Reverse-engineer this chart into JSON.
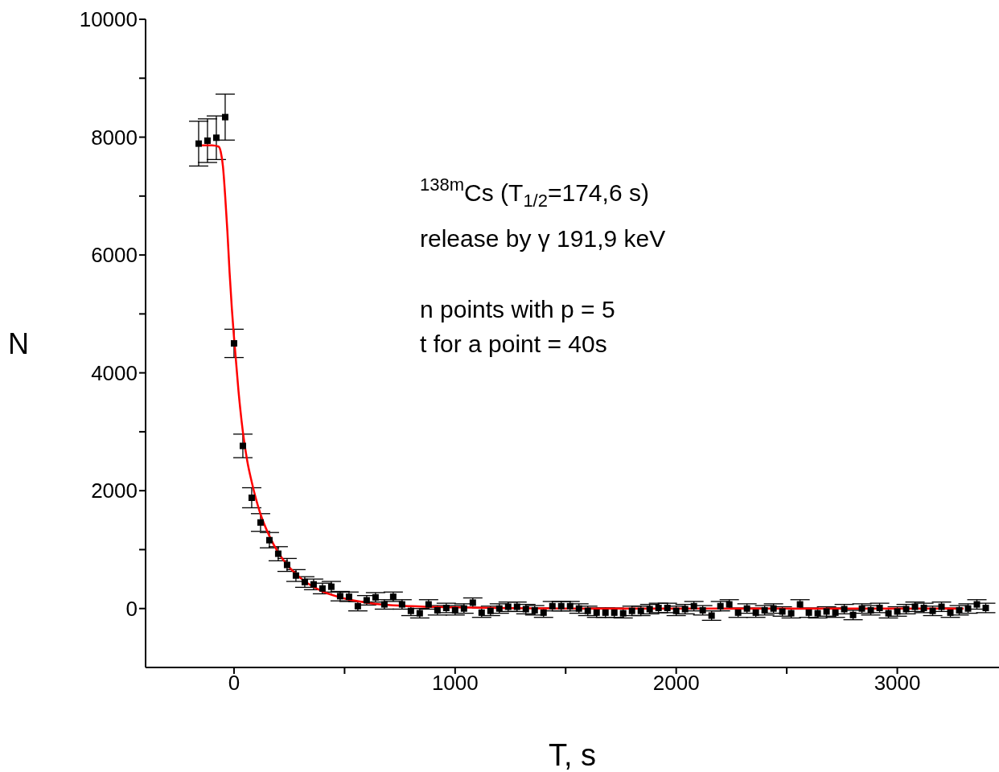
{
  "chart_data": {
    "type": "scatter",
    "xlabel": "T, s",
    "ylabel": "N",
    "xlim": [
      -400,
      3460
    ],
    "ylim": [
      -1000,
      10000
    ],
    "xticks": [
      0,
      {
        "value": 500,
        "label": null
      },
      1000,
      {
        "value": 1500,
        "label": null
      },
      2000,
      {
        "value": 2500,
        "label": null
      },
      3000
    ],
    "yticks": [
      0,
      {
        "value": 1000,
        "label": null
      },
      2000,
      {
        "value": 3000,
        "label": null
      },
      4000,
      {
        "value": 5000,
        "label": null
      },
      6000,
      {
        "value": 7000,
        "label": null
      },
      8000,
      {
        "value": 9000,
        "label": null
      },
      10000
    ],
    "grid": false,
    "marker": "square",
    "annotations": [
      "$^{138m}$Cs (T$_{1/2}$=174,6 s)",
      "release by γ 191,9 keV",
      "n points with p = 5",
      "t for a point = 40s"
    ],
    "series": [
      {
        "color": "#000000",
        "x": [
          -160,
          -120,
          -80,
          -40,
          0,
          40,
          80,
          120,
          160,
          200,
          240,
          280,
          320,
          360,
          400,
          440,
          480,
          520,
          560,
          600,
          640,
          680,
          720,
          760,
          800,
          840,
          880,
          920,
          960,
          1000,
          1040,
          1080,
          1120,
          1160,
          1200,
          1240,
          1280,
          1320,
          1360,
          1400,
          1440,
          1480,
          1520,
          1560,
          1600,
          1640,
          1680,
          1720,
          1760,
          1800,
          1840,
          1880,
          1920,
          1960,
          2000,
          2040,
          2080,
          2120,
          2160,
          2200,
          2240,
          2280,
          2320,
          2360,
          2400,
          2440,
          2480,
          2520,
          2560,
          2600,
          2640,
          2680,
          2720,
          2760,
          2800,
          2840,
          2880,
          2920,
          2960,
          3000,
          3040,
          3080,
          3120,
          3160,
          3200,
          3240,
          3280,
          3320,
          3360,
          3400
        ],
        "values": [
          7890,
          7940,
          7990,
          8340,
          4500,
          2760,
          1880,
          1460,
          1160,
          930,
          740,
          560,
          450,
          410,
          340,
          370,
          210,
          200,
          40,
          140,
          190,
          70,
          200,
          70,
          -40,
          -80,
          70,
          -30,
          10,
          -30,
          0,
          100,
          -70,
          -40,
          0,
          30,
          30,
          -10,
          -30,
          -70,
          40,
          40,
          40,
          0,
          -40,
          -70,
          -70,
          -70,
          -80,
          -40,
          -40,
          -10,
          10,
          10,
          -40,
          -10,
          40,
          -30,
          -120,
          40,
          70,
          -70,
          0,
          -70,
          -30,
          0,
          -50,
          -80,
          70,
          -70,
          -80,
          -50,
          -70,
          -10,
          -110,
          0,
          -30,
          10,
          -80,
          -50,
          -10,
          30,
          10,
          -40,
          30,
          -70,
          -30,
          0,
          70,
          10
        ],
        "errors": [
          380,
          370,
          370,
          390,
          240,
          200,
          170,
          150,
          130,
          120,
          110,
          100,
          90,
          90,
          90,
          90,
          80,
          80,
          80,
          80,
          80,
          80,
          80,
          80,
          80,
          80,
          80,
          80,
          80,
          80,
          80,
          80,
          80,
          80,
          80,
          80,
          80,
          80,
          80,
          80,
          80,
          80,
          80,
          80,
          80,
          80,
          80,
          80,
          80,
          80,
          80,
          80,
          80,
          80,
          80,
          80,
          80,
          80,
          80,
          80,
          80,
          80,
          80,
          80,
          80,
          80,
          80,
          80,
          80,
          80,
          80,
          80,
          80,
          80,
          80,
          80,
          80,
          80,
          80,
          80,
          80,
          80,
          80,
          80,
          80,
          80,
          80,
          80,
          80,
          80
        ]
      },
      {
        "type": "line",
        "color": "#ff0000",
        "marker": "none",
        "line_style": "solid",
        "x": [
          -160,
          -100,
          -70,
          -60,
          -50,
          -40,
          -30,
          -20,
          -10,
          0,
          20,
          40,
          60,
          80,
          120,
          160,
          200,
          250,
          300,
          400,
          500,
          600,
          800,
          1000,
          1500,
          2000,
          3300
        ],
        "values": [
          7860,
          7860,
          7840,
          7750,
          7500,
          7000,
          6400,
          5700,
          5100,
          4600,
          3700,
          3000,
          2500,
          2150,
          1600,
          1230,
          950,
          700,
          520,
          290,
          170,
          100,
          40,
          20,
          0,
          0,
          0
        ]
      }
    ]
  }
}
